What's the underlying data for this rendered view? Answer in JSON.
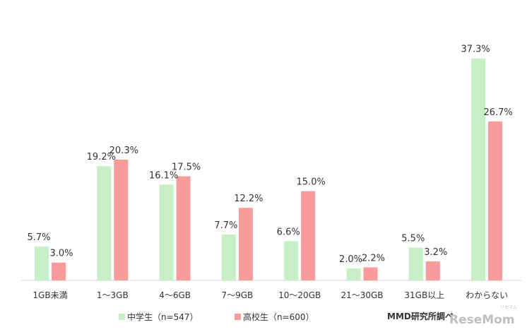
{
  "chart_data": {
    "type": "bar",
    "title": "",
    "xlabel": "",
    "ylabel": "",
    "ylim": [
      0,
      40
    ],
    "grid": false,
    "legend_position": "bottom",
    "categories": [
      "1GB未満",
      "1～3GB",
      "4～6GB",
      "7～9GB",
      "10～20GB",
      "21～30GB",
      "31GB以上",
      "わからない"
    ],
    "series": [
      {
        "name": "中学生（n=547）",
        "color": "#c6efc6",
        "values": [
          5.7,
          19.2,
          16.1,
          7.7,
          6.6,
          2.0,
          5.5,
          37.3
        ],
        "labels": [
          "5.7%",
          "19.2%",
          "16.1%",
          "7.7%",
          "6.6%",
          "2.0%",
          "5.5%",
          "37.3%"
        ]
      },
      {
        "name": "高校生（n=600）",
        "color": "#f79b9b",
        "values": [
          3.0,
          20.3,
          17.5,
          12.2,
          15.0,
          2.2,
          3.2,
          26.7
        ],
        "labels": [
          "3.0%",
          "20.3%",
          "17.5%",
          "12.2%",
          "15.0%",
          "2.2%",
          "3.2%",
          "26.7%"
        ]
      }
    ]
  },
  "source": "MMD研究所調べ",
  "watermark": {
    "text": "ReseMom",
    "furigana": "リセマム"
  }
}
